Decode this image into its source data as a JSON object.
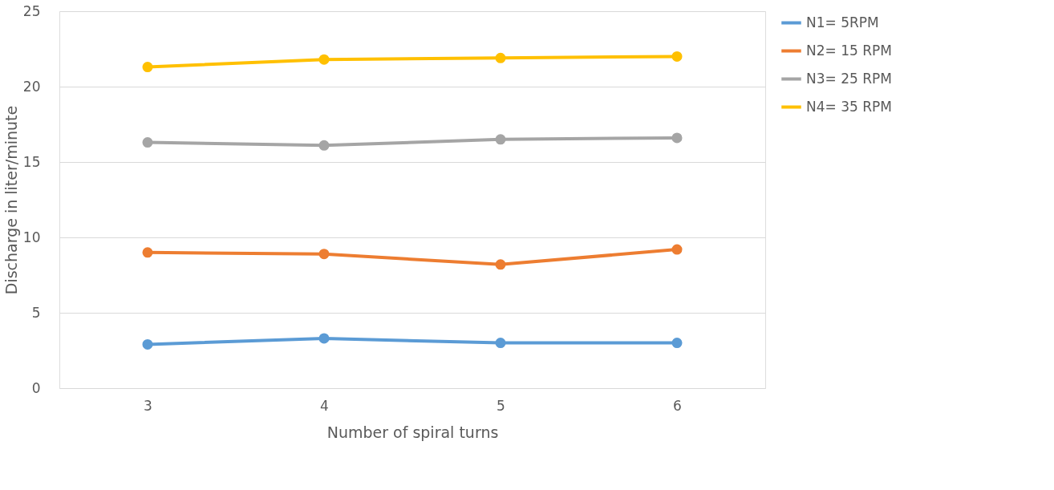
{
  "chart_data": {
    "type": "line",
    "xlabel": "Number of spiral turns",
    "ylabel": "Discharge in liter/minute",
    "categories": [
      "3",
      "4",
      "5",
      "6"
    ],
    "series": [
      {
        "name": "N1= 5RPM",
        "color": "#5b9bd5",
        "values": [
          2.9,
          3.3,
          3.0,
          3.0
        ]
      },
      {
        "name": "N2= 15 RPM",
        "color": "#ed7d31",
        "values": [
          9.0,
          8.9,
          8.2,
          9.2
        ]
      },
      {
        "name": "N3= 25 RPM",
        "color": "#a5a5a5",
        "values": [
          16.3,
          16.1,
          16.5,
          16.6
        ]
      },
      {
        "name": "N4= 35 RPM",
        "color": "#ffc000",
        "values": [
          21.3,
          21.8,
          21.9,
          22.0
        ]
      }
    ],
    "ylim": [
      0,
      25
    ],
    "yticks": [
      0,
      5,
      10,
      15,
      20,
      25
    ],
    "grid": "y",
    "legend": "right",
    "marker": "circle",
    "line_style": "solid"
  }
}
